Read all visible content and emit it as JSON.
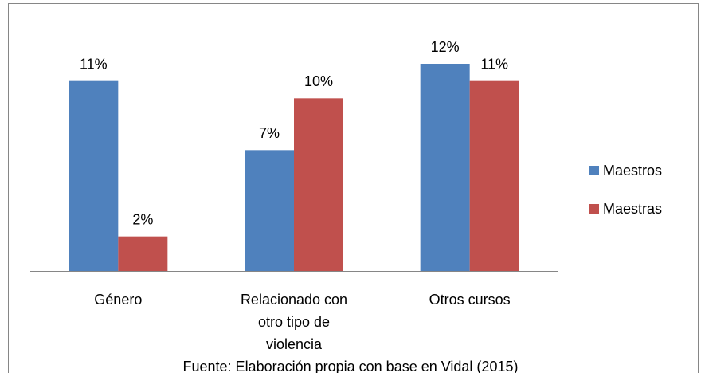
{
  "chart_data": {
    "type": "bar",
    "categories": [
      "Género",
      "Relacionado con otro tipo de violencia",
      "Otros cursos"
    ],
    "series": [
      {
        "name": "Maestros",
        "color": "#4f81bd",
        "values": [
          11,
          7,
          12
        ],
        "value_labels": [
          "11%",
          "7%",
          "12%"
        ]
      },
      {
        "name": "Maestras",
        "color": "#c0504d",
        "values": [
          2,
          10,
          11
        ],
        "value_labels": [
          "2%",
          "10%",
          "11%"
        ]
      }
    ],
    "legend": "right",
    "source": "Fuente: Elaboración propia con base en Vidal (2015)"
  }
}
